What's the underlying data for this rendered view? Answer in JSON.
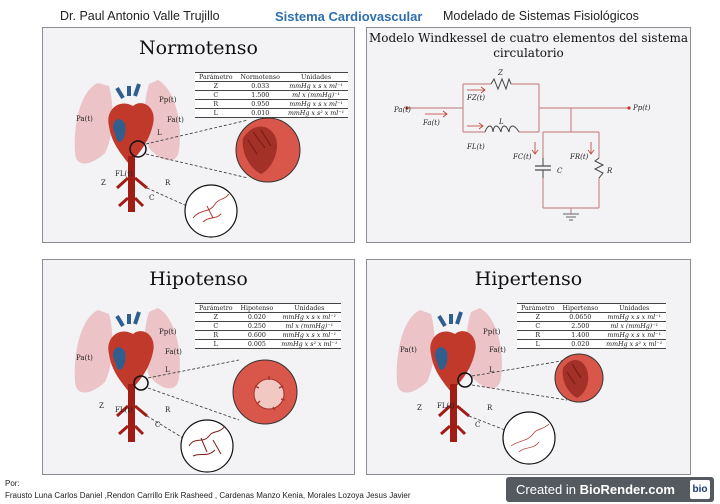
{
  "header": {
    "author": "Dr. Paul Antonio Valle Trujillo",
    "topic": "Sistema Cardiovascular",
    "course": "Modelado de Sistemas Fisiológicos"
  },
  "windkessel": {
    "title": "Modelo Windkessel de cuatro elementos del sistema circulatorio",
    "labels": {
      "pa": "Pa(t)",
      "fa": "Fa(t)",
      "fz": "FZ(t)",
      "fl": "FL(t)",
      "z": "Z",
      "l": "L",
      "pp": "Pp(t)",
      "fc": "FC(t)",
      "c": "C",
      "fr": "FR(t)",
      "r": "R"
    }
  },
  "diagram_labels": {
    "pa": "Pa(t)",
    "pp": "Pp(t)",
    "fa": "Fa(t)",
    "fl": "FL(t)",
    "z": "Z",
    "l": "L",
    "r": "R",
    "c": "C"
  },
  "panels": [
    {
      "title": "Normotenso",
      "table": {
        "headers": [
          "Parámetro",
          "Normotenso",
          "Unidades"
        ],
        "rows": [
          [
            "Z",
            "0.033",
            "mmHg x s x ml⁻¹"
          ],
          [
            "C",
            "1.500",
            "ml x (mmHg)⁻¹"
          ],
          [
            "R",
            "0.950",
            "mmHg x s x ml⁻¹"
          ],
          [
            "L",
            "0.010",
            "mmHg x s² x ml⁻¹"
          ]
        ]
      }
    },
    {
      "title": "Hipotenso",
      "table": {
        "headers": [
          "Parámetro",
          "Hipotenso",
          "Unidades"
        ],
        "rows": [
          [
            "Z",
            "0.020",
            "mmHg x s x ml⁻¹"
          ],
          [
            "C",
            "0.250",
            "ml x (mmHg)⁻¹"
          ],
          [
            "R",
            "0.600",
            "mmHg x s x ml⁻¹"
          ],
          [
            "L",
            "0.005",
            "mmHg x s² x ml⁻¹"
          ]
        ]
      }
    },
    {
      "title": "Hipertenso",
      "table": {
        "headers": [
          "Parámetro",
          "Hipertenso",
          "Unidades"
        ],
        "rows": [
          [
            "Z",
            "0.0650",
            "mmHg x s x ml⁻¹"
          ],
          [
            "C",
            "2.500",
            "ml x (mmHg)⁻¹"
          ],
          [
            "R",
            "1.400",
            "mmHg x s x ml⁻¹"
          ],
          [
            "L",
            "0.020",
            "mmHg x s² x ml⁻¹"
          ]
        ]
      }
    }
  ],
  "footer": {
    "por": "Por:",
    "authors": "Frausto Luna Carlos Daniel ,Rendon Carrillo Erik Rasheed , Cardenas Manzo Kenia, Morales Lozoya Jesus Javier"
  },
  "badge": {
    "prefix": "Created in ",
    "brand": "BioRender.com",
    "logo": "bio"
  },
  "colors": {
    "panel_border": "#8c8c94",
    "title_blue": "#2e6fb0",
    "heart_red": "#c0392b",
    "vessel_blue": "#2f5f8e",
    "lung_pink": "#e8a9ad",
    "circuit_pink": "#c98c8c"
  },
  "icons": [
    "heart-illustration",
    "lung-illustration",
    "aorta-illustration",
    "myocardium-icon",
    "capillary-icon",
    "resistor-icon",
    "capacitor-icon",
    "inductor-icon",
    "ground-icon"
  ]
}
